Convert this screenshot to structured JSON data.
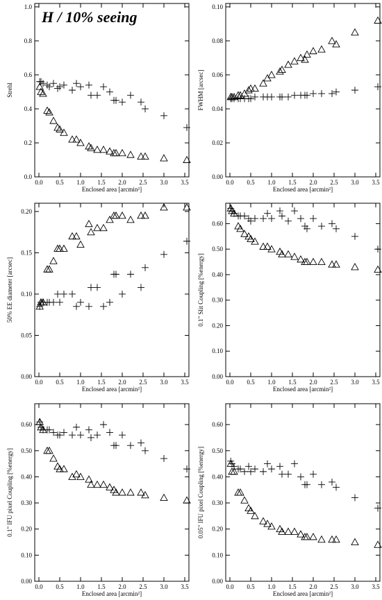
{
  "chart_data": [
    {
      "type": "scatter",
      "annotation": "H / 10% seeing",
      "xlabel": "Enclosed area [arcmin²]",
      "ylabel": "Strehl",
      "x": [
        0.02,
        0.05,
        0.1,
        0.2,
        0.25,
        0.35,
        0.45,
        0.5,
        0.6,
        0.8,
        0.9,
        1.0,
        1.2,
        1.25,
        1.4,
        1.55,
        1.7,
        1.8,
        1.85,
        2.0,
        2.2,
        2.45,
        2.55,
        3.0,
        3.55
      ],
      "xlim": [
        -0.1,
        3.6
      ],
      "xticks": [
        {
          "value": 0,
          "label": "0.0"
        },
        0.5,
        {
          "value": 1,
          "label": "1.0"
        },
        1.5,
        {
          "value": 2,
          "label": "2.0"
        },
        2.5,
        {
          "value": 3,
          "label": "3.0"
        },
        3.5
      ],
      "ylim": [
        0,
        1.02
      ],
      "yticks": [
        {
          "value": 0,
          "label": "0.0"
        },
        0.2,
        0.4,
        0.6,
        0.8,
        {
          "value": 1,
          "label": "1.0"
        }
      ],
      "series": [
        {
          "marker": "triangle",
          "color": "#000000",
          "values": [
            0.53,
            0.5,
            0.49,
            0.39,
            0.38,
            0.33,
            0.29,
            0.28,
            0.26,
            0.22,
            0.22,
            0.2,
            0.18,
            0.17,
            0.16,
            0.16,
            0.15,
            0.14,
            0.14,
            0.14,
            0.13,
            0.12,
            0.12,
            0.11,
            0.1
          ]
        },
        {
          "marker": "plus",
          "color": "#000000",
          "values": [
            0.56,
            0.56,
            0.55,
            0.54,
            0.53,
            0.55,
            0.52,
            0.53,
            0.54,
            0.51,
            0.55,
            0.53,
            0.54,
            0.48,
            0.48,
            0.53,
            0.5,
            0.45,
            0.45,
            0.44,
            0.48,
            0.44,
            0.4,
            0.36,
            0.29
          ]
        }
      ]
    },
    {
      "type": "scatter",
      "xlabel": "Enclosed area [arcmin²]",
      "ylabel": "FWHM [arcsec]",
      "x": [
        0.02,
        0.05,
        0.1,
        0.2,
        0.25,
        0.35,
        0.45,
        0.5,
        0.6,
        0.8,
        0.9,
        1.0,
        1.2,
        1.25,
        1.4,
        1.55,
        1.7,
        1.8,
        1.85,
        2.0,
        2.2,
        2.45,
        2.55,
        3.0,
        3.55
      ],
      "xlim": [
        -0.1,
        3.6
      ],
      "xticks": [
        {
          "value": 0,
          "label": "0.0"
        },
        0.5,
        {
          "value": 1,
          "label": "1.0"
        },
        1.5,
        {
          "value": 2,
          "label": "2.0"
        },
        2.5,
        {
          "value": 3,
          "label": "3.0"
        },
        3.5
      ],
      "ylim": [
        0,
        0.102
      ],
      "yticks": [
        {
          "value": 0,
          "label": "0.00"
        },
        0.02,
        0.04,
        0.06,
        0.08,
        {
          "value": 0.1,
          "label": "0.10"
        }
      ],
      "series": [
        {
          "marker": "triangle",
          "color": "#000000",
          "values": [
            0.047,
            0.047,
            0.047,
            0.048,
            0.048,
            0.049,
            0.051,
            0.052,
            0.052,
            0.055,
            0.058,
            0.06,
            0.062,
            0.063,
            0.066,
            0.068,
            0.07,
            0.069,
            0.072,
            0.074,
            0.075,
            0.08,
            0.078,
            0.085,
            0.092
          ]
        },
        {
          "marker": "plus",
          "color": "#000000",
          "values": [
            0.046,
            0.046,
            0.046,
            0.046,
            0.046,
            0.046,
            0.046,
            0.046,
            0.047,
            0.047,
            0.047,
            0.047,
            0.047,
            0.047,
            0.047,
            0.048,
            0.048,
            0.048,
            0.048,
            0.049,
            0.049,
            0.049,
            0.05,
            0.051,
            0.053
          ]
        }
      ]
    },
    {
      "type": "scatter",
      "xlabel": "Enclosed area [arcmin²]",
      "ylabel": "50% EE diameter [arcsec]",
      "x": [
        0.02,
        0.05,
        0.1,
        0.2,
        0.25,
        0.35,
        0.45,
        0.5,
        0.6,
        0.8,
        0.9,
        1.0,
        1.2,
        1.25,
        1.4,
        1.55,
        1.7,
        1.8,
        1.85,
        2.0,
        2.2,
        2.45,
        2.55,
        3.0,
        3.55
      ],
      "xlim": [
        -0.1,
        3.6
      ],
      "xticks": [
        {
          "value": 0,
          "label": "0.0"
        },
        0.5,
        {
          "value": 1,
          "label": "1.0"
        },
        1.5,
        {
          "value": 2,
          "label": "2.0"
        },
        2.5,
        {
          "value": 3,
          "label": "3.0"
        },
        3.5
      ],
      "ylim": [
        0,
        0.21
      ],
      "yticks": [
        {
          "value": 0,
          "label": "0.00"
        },
        0.05,
        {
          "value": 0.1,
          "label": "0.10"
        },
        0.15,
        {
          "value": 0.2,
          "label": "0.20"
        }
      ],
      "series": [
        {
          "marker": "triangle",
          "color": "#000000",
          "values": [
            0.085,
            0.09,
            0.09,
            0.13,
            0.13,
            0.14,
            0.155,
            0.155,
            0.155,
            0.17,
            0.17,
            0.16,
            0.185,
            0.175,
            0.18,
            0.18,
            0.19,
            0.195,
            0.195,
            0.195,
            0.19,
            0.195,
            0.195,
            0.205,
            0.205
          ]
        },
        {
          "marker": "plus",
          "color": "#000000",
          "values": [
            0.085,
            0.09,
            0.09,
            0.09,
            0.09,
            0.09,
            0.1,
            0.09,
            0.1,
            0.1,
            0.085,
            0.09,
            0.085,
            0.108,
            0.108,
            0.085,
            0.09,
            0.124,
            0.124,
            0.1,
            0.124,
            0.108,
            0.132,
            0.148,
            0.164
          ]
        }
      ]
    },
    {
      "type": "scatter",
      "xlabel": "Enclosed area [arcmin²]",
      "ylabel": "0.1\" Slit Coupling [%energy]",
      "x": [
        0.02,
        0.05,
        0.1,
        0.2,
        0.25,
        0.35,
        0.45,
        0.5,
        0.6,
        0.8,
        0.9,
        1.0,
        1.2,
        1.25,
        1.4,
        1.55,
        1.7,
        1.8,
        1.85,
        2.0,
        2.2,
        2.45,
        2.55,
        3.0,
        3.55
      ],
      "xlim": [
        -0.1,
        3.6
      ],
      "xticks": [
        {
          "value": 0,
          "label": "0.0"
        },
        0.5,
        {
          "value": 1,
          "label": "1.0"
        },
        1.5,
        {
          "value": 2,
          "label": "2.0"
        },
        2.5,
        {
          "value": 3,
          "label": "3.0"
        },
        3.5
      ],
      "ylim": [
        0,
        0.68
      ],
      "yticks": [
        {
          "value": 0,
          "label": "0.00"
        },
        {
          "value": 0.1,
          "label": "0.10"
        },
        {
          "value": 0.2,
          "label": "0.20"
        },
        {
          "value": 0.3,
          "label": "0.30"
        },
        {
          "value": 0.4,
          "label": "0.40"
        },
        {
          "value": 0.5,
          "label": "0.50"
        },
        {
          "value": 0.6,
          "label": "0.60"
        }
      ],
      "series": [
        {
          "marker": "triangle",
          "color": "#000000",
          "values": [
            0.66,
            0.65,
            0.64,
            0.59,
            0.58,
            0.56,
            0.55,
            0.54,
            0.53,
            0.51,
            0.51,
            0.5,
            0.49,
            0.48,
            0.48,
            0.47,
            0.46,
            0.45,
            0.45,
            0.45,
            0.45,
            0.44,
            0.44,
            0.43,
            0.42
          ]
        },
        {
          "marker": "plus",
          "color": "#000000",
          "values": [
            0.66,
            0.65,
            0.64,
            0.63,
            0.63,
            0.63,
            0.62,
            0.61,
            0.62,
            0.62,
            0.64,
            0.62,
            0.65,
            0.63,
            0.61,
            0.65,
            0.62,
            0.59,
            0.58,
            0.62,
            0.59,
            0.6,
            0.58,
            0.55,
            0.5
          ]
        }
      ]
    },
    {
      "type": "scatter",
      "xlabel": "Enclosed area [arcmin²]",
      "ylabel": "0.1\" IFU pixel Coupling [%energy]",
      "x": [
        0.02,
        0.05,
        0.1,
        0.2,
        0.25,
        0.35,
        0.45,
        0.5,
        0.6,
        0.8,
        0.9,
        1.0,
        1.2,
        1.25,
        1.4,
        1.55,
        1.7,
        1.8,
        1.85,
        2.0,
        2.2,
        2.45,
        2.55,
        3.0,
        3.55
      ],
      "xlim": [
        -0.1,
        3.6
      ],
      "xticks": [
        {
          "value": 0,
          "label": "0.0"
        },
        0.5,
        {
          "value": 1,
          "label": "1.0"
        },
        1.5,
        {
          "value": 2,
          "label": "2.0"
        },
        2.5,
        {
          "value": 3,
          "label": "3.0"
        },
        3.5
      ],
      "ylim": [
        0,
        0.68
      ],
      "yticks": [
        {
          "value": 0,
          "label": "0.00"
        },
        {
          "value": 0.1,
          "label": "0.10"
        },
        {
          "value": 0.2,
          "label": "0.20"
        },
        {
          "value": 0.3,
          "label": "0.30"
        },
        {
          "value": 0.4,
          "label": "0.40"
        },
        {
          "value": 0.5,
          "label": "0.50"
        },
        {
          "value": 0.6,
          "label": "0.60"
        }
      ],
      "series": [
        {
          "marker": "triangle",
          "color": "#000000",
          "values": [
            0.61,
            0.59,
            0.58,
            0.5,
            0.5,
            0.47,
            0.44,
            0.43,
            0.43,
            0.4,
            0.41,
            0.4,
            0.39,
            0.37,
            0.37,
            0.37,
            0.36,
            0.35,
            0.34,
            0.34,
            0.34,
            0.34,
            0.33,
            0.32,
            0.31
          ]
        },
        {
          "marker": "plus",
          "color": "#000000",
          "values": [
            0.61,
            0.59,
            0.58,
            0.58,
            0.58,
            0.57,
            0.56,
            0.56,
            0.57,
            0.56,
            0.59,
            0.56,
            0.58,
            0.55,
            0.56,
            0.6,
            0.57,
            0.52,
            0.52,
            0.56,
            0.52,
            0.53,
            0.5,
            0.47,
            0.43
          ]
        }
      ]
    },
    {
      "type": "scatter",
      "xlabel": "Enclosed area [arcmin²]",
      "ylabel": "0.05\" IFU pixel Coupling [%energy]",
      "x": [
        0.02,
        0.05,
        0.1,
        0.2,
        0.25,
        0.35,
        0.45,
        0.5,
        0.6,
        0.8,
        0.9,
        1.0,
        1.2,
        1.25,
        1.4,
        1.55,
        1.7,
        1.8,
        1.85,
        2.0,
        2.2,
        2.45,
        2.55,
        3.0,
        3.55
      ],
      "xlim": [
        -0.1,
        3.6
      ],
      "xticks": [
        {
          "value": 0,
          "label": "0.0"
        },
        0.5,
        {
          "value": 1,
          "label": "1.0"
        },
        1.5,
        {
          "value": 2,
          "label": "2.0"
        },
        2.5,
        {
          "value": 3,
          "label": "3.0"
        },
        3.5
      ],
      "ylim": [
        0,
        0.68
      ],
      "yticks": [
        {
          "value": 0,
          "label": "0.00"
        },
        {
          "value": 0.1,
          "label": "0.10"
        },
        {
          "value": 0.2,
          "label": "0.20"
        },
        {
          "value": 0.3,
          "label": "0.30"
        },
        {
          "value": 0.4,
          "label": "0.40"
        },
        {
          "value": 0.5,
          "label": "0.50"
        },
        {
          "value": 0.6,
          "label": "0.60"
        }
      ],
      "series": [
        {
          "marker": "triangle",
          "color": "#000000",
          "values": [
            0.45,
            0.42,
            0.42,
            0.34,
            0.34,
            0.31,
            0.28,
            0.27,
            0.25,
            0.23,
            0.22,
            0.21,
            0.2,
            0.19,
            0.19,
            0.19,
            0.18,
            0.17,
            0.17,
            0.17,
            0.16,
            0.16,
            0.16,
            0.15,
            0.14
          ]
        },
        {
          "marker": "plus",
          "color": "#000000",
          "values": [
            0.46,
            0.45,
            0.44,
            0.43,
            0.43,
            0.42,
            0.44,
            0.42,
            0.43,
            0.42,
            0.45,
            0.43,
            0.44,
            0.41,
            0.41,
            0.45,
            0.4,
            0.37,
            0.37,
            0.41,
            0.37,
            0.38,
            0.36,
            0.32,
            0.28
          ]
        }
      ]
    }
  ]
}
